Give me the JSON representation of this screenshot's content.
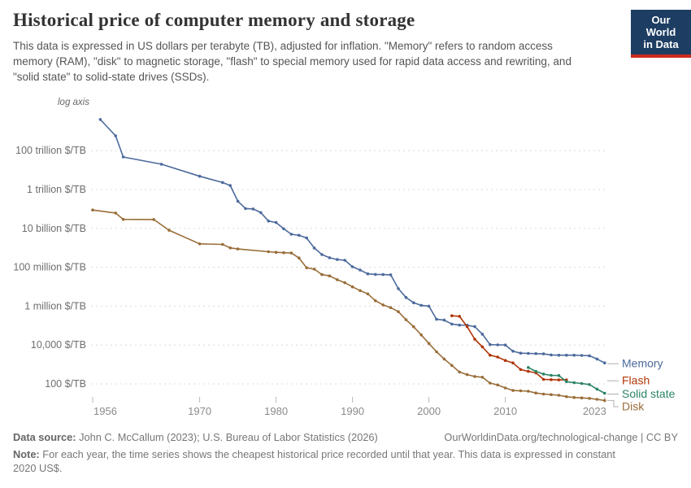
{
  "header": {
    "title": "Historical price of computer memory and storage",
    "subtitle": "This data is expressed in US dollars per terabyte (TB), adjusted for inflation. \"Memory\" refers to random access memory (RAM), \"disk\" to magnetic storage, \"flash\" to special memory used for rapid data access and rewriting, and \"solid state\" to solid-state drives (SSDs).",
    "logo": {
      "line1": "Our World",
      "line2": "in Data",
      "bg_color": "#1D3D63",
      "accent_color": "#CD2A1E"
    }
  },
  "chart_data": {
    "type": "line",
    "title": "Historical price of computer memory and storage",
    "unit": "$/TB (constant 2020 US$)",
    "x_axis": {
      "ticks": [
        1956,
        1970,
        1980,
        1990,
        2000,
        2010,
        2023
      ],
      "range": [
        1956,
        2024
      ]
    },
    "y_axis": {
      "scale": "log",
      "label": "log axis",
      "range": [
        10,
        1e+16
      ],
      "gridlines": [
        {
          "value": 100000000000000.0,
          "label": "100 trillion $/TB"
        },
        {
          "value": 1000000000000.0,
          "label": "1 trillion $/TB"
        },
        {
          "value": 10000000000.0,
          "label": "10 billion $/TB"
        },
        {
          "value": 100000000.0,
          "label": "100 million $/TB"
        },
        {
          "value": 1000000.0,
          "label": "1 million $/TB"
        },
        {
          "value": 10000.0,
          "label": "10,000 $/TB"
        },
        {
          "value": 100.0,
          "label": "100 $/TB"
        }
      ]
    },
    "legend_position": "right-of-line-ends",
    "series": [
      {
        "name": "Memory",
        "color": "#4C6A9C",
        "points": [
          [
            1957,
            4000000000000000.0
          ],
          [
            1959,
            580000000000000.0
          ],
          [
            1960,
            47000000000000.0
          ],
          [
            1965,
            20000000000000.0
          ],
          [
            1970,
            4800000000000.0
          ],
          [
            1973,
            2300000000000.0
          ],
          [
            1974,
            1600000000000.0
          ],
          [
            1975,
            250000000000.0
          ],
          [
            1976,
            105000000000.0
          ],
          [
            1977,
            100000000000.0
          ],
          [
            1978,
            65000000000.0
          ],
          [
            1979,
            24000000000.0
          ],
          [
            1980,
            20000000000.0
          ],
          [
            1981,
            9500000000.0
          ],
          [
            1982,
            5000000000.0
          ],
          [
            1983,
            4400000000.0
          ],
          [
            1984,
            3200000000.0
          ],
          [
            1985,
            980000000.0
          ],
          [
            1986,
            450000000.0
          ],
          [
            1987,
            310000000.0
          ],
          [
            1988,
            250000000.0
          ],
          [
            1989,
            230000000.0
          ],
          [
            1990,
            106000000.0
          ],
          [
            1991,
            72000000.0
          ],
          [
            1992,
            46000000.0
          ],
          [
            1993,
            43000000.0
          ],
          [
            1994,
            42000000.0
          ],
          [
            1995,
            41000000.0
          ],
          [
            1996,
            7900000.0
          ],
          [
            1997,
            2800000.0
          ],
          [
            1998,
            1500000.0
          ],
          [
            1999,
            1100000.0
          ],
          [
            2000,
            1000000.0
          ],
          [
            2001,
            210000.0
          ],
          [
            2002,
            190000.0
          ],
          [
            2003,
            120000.0
          ],
          [
            2004,
            106000.0
          ],
          [
            2005,
            105000.0
          ],
          [
            2006,
            88000.0
          ],
          [
            2007,
            36000.0
          ],
          [
            2008,
            10500.0
          ],
          [
            2009,
            10200.0
          ],
          [
            2010,
            10000.0
          ],
          [
            2011,
            4800.0
          ],
          [
            2012,
            3800.0
          ],
          [
            2013,
            3700.0
          ],
          [
            2014,
            3600.0
          ],
          [
            2015,
            3500.0
          ],
          [
            2016,
            3100.0
          ],
          [
            2017,
            3000.0
          ],
          [
            2018,
            3000.0
          ],
          [
            2019,
            3000.0
          ],
          [
            2020,
            2900.0
          ],
          [
            2021,
            2800.0
          ],
          [
            2022,
            1900.0
          ],
          [
            2023,
            1200.0
          ]
        ]
      },
      {
        "name": "Flash",
        "color": "#B13507",
        "points": [
          [
            2003,
            320000.0
          ],
          [
            2004,
            300000.0
          ],
          [
            2005,
            88000.0
          ],
          [
            2006,
            20000.0
          ],
          [
            2007,
            8000.0
          ],
          [
            2008,
            3000.0
          ],
          [
            2009,
            2400.0
          ],
          [
            2010,
            1600.0
          ],
          [
            2011,
            1200.0
          ],
          [
            2012,
            550.0
          ],
          [
            2013,
            440.0
          ],
          [
            2014,
            370.0
          ],
          [
            2015,
            170.0
          ],
          [
            2016,
            165.0
          ],
          [
            2017,
            160.0
          ],
          [
            2018,
            160.0
          ]
        ]
      },
      {
        "name": "Solid state",
        "color": "#2C8465",
        "points": [
          [
            2013,
            700.0
          ],
          [
            2014,
            440.0
          ],
          [
            2015,
            320.0
          ],
          [
            2016,
            275.0
          ],
          [
            2017,
            270.0
          ],
          [
            2018,
            130.0
          ],
          [
            2019,
            115.0
          ],
          [
            2020,
            105.0
          ],
          [
            2021,
            93
          ],
          [
            2022,
            54
          ],
          [
            2023,
            33
          ]
        ]
      },
      {
        "name": "Disk",
        "color": "#996D39",
        "points": [
          [
            1956,
            88000000000.0
          ],
          [
            1959,
            62000000000.0
          ],
          [
            1960,
            29000000000.0
          ],
          [
            1964,
            28500000000.0
          ],
          [
            1966,
            8000000000.0
          ],
          [
            1970,
            1600000000.0
          ],
          [
            1973,
            1500000000.0
          ],
          [
            1974,
            990000000.0
          ],
          [
            1975,
            870000000.0
          ],
          [
            1979,
            630000000.0
          ],
          [
            1980,
            590000000.0
          ],
          [
            1981,
            560000000.0
          ],
          [
            1982,
            540000000.0
          ],
          [
            1983,
            300000000.0
          ],
          [
            1984,
            94000000.0
          ],
          [
            1985,
            80000000.0
          ],
          [
            1986,
            42000000.0
          ],
          [
            1987,
            36000000.0
          ],
          [
            1988,
            23000000.0
          ],
          [
            1989,
            16000000.0
          ],
          [
            1990,
            9800000.0
          ],
          [
            1991,
            6300000.0
          ],
          [
            1992,
            4300000.0
          ],
          [
            1993,
            1900000.0
          ],
          [
            1994,
            1150000.0
          ],
          [
            1995,
            840000.0
          ],
          [
            1996,
            520000.0
          ],
          [
            1997,
            200000.0
          ],
          [
            1998,
            87000.0
          ],
          [
            1999,
            33000.0
          ],
          [
            2000,
            12000.0
          ],
          [
            2001,
            4500.0
          ],
          [
            2002,
            1900.0
          ],
          [
            2003,
            890.0
          ],
          [
            2004,
            410.0
          ],
          [
            2005,
            300.0
          ],
          [
            2006,
            240.0
          ],
          [
            2007,
            220.0
          ],
          [
            2008,
            110.0
          ],
          [
            2009,
            88
          ],
          [
            2010,
            62
          ],
          [
            2011,
            46
          ],
          [
            2012,
            44
          ],
          [
            2013,
            42
          ],
          [
            2014,
            34
          ],
          [
            2015,
            30
          ],
          [
            2016,
            28
          ],
          [
            2017,
            26
          ],
          [
            2018,
            22
          ],
          [
            2019,
            20
          ],
          [
            2020,
            19
          ],
          [
            2021,
            18
          ],
          [
            2022,
            16
          ],
          [
            2023,
            14
          ]
        ]
      }
    ]
  },
  "footer": {
    "source_label": "Data source:",
    "source_text": " John C. McCallum (2023); U.S. Bureau of Labor Statistics (2026)",
    "link": "OurWorldinData.org/technological-change | CC BY",
    "note_label": "Note:",
    "note_text": " For each year, the time series shows the cheapest historical price recorded until that year. This data is expressed in constant 2020 US$."
  }
}
